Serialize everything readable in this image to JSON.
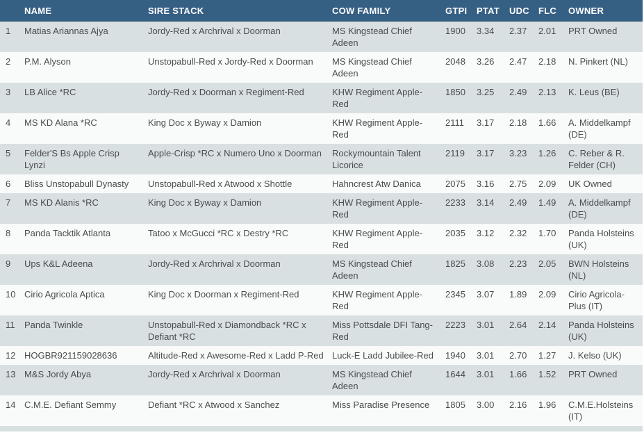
{
  "colors": {
    "header_bg": "#365f84",
    "header_text": "#ffffff",
    "row_odd_bg": "#d9e0e1",
    "row_even_bg": "#f9fafa",
    "body_text": "#4a4c4e"
  },
  "table": {
    "columns": [
      {
        "key": "rank",
        "label": ""
      },
      {
        "key": "name",
        "label": "NAME"
      },
      {
        "key": "sire_stack",
        "label": "SIRE STACK"
      },
      {
        "key": "cow_family",
        "label": "COW FAMILY"
      },
      {
        "key": "gtpi",
        "label": "GTPI"
      },
      {
        "key": "ptat",
        "label": "PTAT"
      },
      {
        "key": "udc",
        "label": "UDC"
      },
      {
        "key": "flc",
        "label": "FLC"
      },
      {
        "key": "owner",
        "label": "OWNER"
      }
    ],
    "rows": [
      {
        "rank": "1",
        "name": "Matias Ariannas Ajya",
        "sire_stack": "Jordy-Red x Archrival x Doorman",
        "cow_family": "MS Kingstead Chief Adeen",
        "gtpi": "1900",
        "ptat": "3.34",
        "udc": "2.37",
        "flc": "2.01",
        "owner": "PRT Owned"
      },
      {
        "rank": "2",
        "name": "P.M. Alyson",
        "sire_stack": "Unstopabull-Red x Jordy-Red x Doorman",
        "cow_family": "MS Kingstead Chief Adeen",
        "gtpi": "2048",
        "ptat": "3.26",
        "udc": "2.47",
        "flc": "2.18",
        "owner": "N. Pinkert (NL)"
      },
      {
        "rank": "3",
        "name": "LB Alice *RC",
        "sire_stack": "Jordy-Red x Doorman x Regiment-Red",
        "cow_family": "KHW Regiment Apple-Red",
        "gtpi": "1850",
        "ptat": "3.25",
        "udc": "2.49",
        "flc": "2.13",
        "owner": "K. Leus (BE)"
      },
      {
        "rank": "4",
        "name": "MS KD Alana *RC",
        "sire_stack": "King Doc x Byway x Damion",
        "cow_family": "KHW Regiment Apple-Red",
        "gtpi": "2111",
        "ptat": "3.17",
        "udc": "2.18",
        "flc": "1.66",
        "owner": "A. Middelkampf (DE)"
      },
      {
        "rank": "5",
        "name": "Felder'S Bs Apple Crisp Lynzi",
        "sire_stack": "Apple-Crisp *RC x Numero Uno x Doorman",
        "cow_family": "Rockymountain Talent Licorice",
        "gtpi": "2119",
        "ptat": "3.17",
        "udc": "3.23",
        "flc": "1.26",
        "owner": "C. Reber & R. Felder (CH)"
      },
      {
        "rank": "6",
        "name": "Bliss Unstopabull Dynasty",
        "sire_stack": "Unstopabull-Red x Atwood x Shottle",
        "cow_family": "Hahncrest Atw Danica",
        "gtpi": "2075",
        "ptat": "3.16",
        "udc": "2.75",
        "flc": "2.09",
        "owner": "UK Owned"
      },
      {
        "rank": "7",
        "name": "MS KD Alanis *RC",
        "sire_stack": "King Doc x Byway x Damion",
        "cow_family": "KHW Regiment Apple-Red",
        "gtpi": "2233",
        "ptat": "3.14",
        "udc": "2.49",
        "flc": "1.49",
        "owner": "A. Middelkampf (DE)"
      },
      {
        "rank": "8",
        "name": "Panda Tacktik Atlanta",
        "sire_stack": "Tatoo x McGucci *RC x Destry *RC",
        "cow_family": "KHW Regiment Apple-Red",
        "gtpi": "2035",
        "ptat": "3.12",
        "udc": "2.32",
        "flc": "1.70",
        "owner": "Panda Holsteins (UK)"
      },
      {
        "rank": "9",
        "name": "Ups K&L Adeena",
        "sire_stack": "Jordy-Red x Archrival x Doorman",
        "cow_family": "MS Kingstead Chief Adeen",
        "gtpi": "1825",
        "ptat": "3.08",
        "udc": "2.23",
        "flc": "2.05",
        "owner": "BWN Holsteins (NL)"
      },
      {
        "rank": "10",
        "name": "Cirio Agricola Aptica",
        "sire_stack": "King Doc x Doorman x Regiment-Red",
        "cow_family": "KHW Regiment Apple-Red",
        "gtpi": "2345",
        "ptat": "3.07",
        "udc": "1.89",
        "flc": "2.09",
        "owner": "Cirio Agricola-Plus (IT)"
      },
      {
        "rank": "11",
        "name": "Panda Twinkle",
        "sire_stack": "Unstopabull-Red x Diamondback *RC x Defiant *RC",
        "cow_family": "Miss Pottsdale DFI Tang-Red",
        "gtpi": "2223",
        "ptat": "3.01",
        "udc": "2.64",
        "flc": "2.14",
        "owner": "Panda Holsteins (UK)"
      },
      {
        "rank": "12",
        "name": "HOGBR921159028636",
        "sire_stack": "Altitude-Red x Awesome-Red x Ladd P-Red",
        "cow_family": "Luck-E Ladd Jubilee-Red",
        "gtpi": "1940",
        "ptat": "3.01",
        "udc": "2.70",
        "flc": "1.27",
        "owner": "J. Kelso (UK)"
      },
      {
        "rank": "13",
        "name": "M&S Jordy Abya",
        "sire_stack": "Jordy-Red x Archrival x Doorman",
        "cow_family": "MS Kingstead Chief Adeen",
        "gtpi": "1644",
        "ptat": "3.01",
        "udc": "1.66",
        "flc": "1.52",
        "owner": "PRT Owned"
      },
      {
        "rank": "14",
        "name": "C.M.E. Defiant Semmy",
        "sire_stack": "Defiant *RC x Atwood x Sanchez",
        "cow_family": "Miss Paradise Presence",
        "gtpi": "1805",
        "ptat": "3.00",
        "udc": "2.16",
        "flc": "1.96",
        "owner": "C.M.E.Holsteins (IT)"
      }
    ]
  }
}
